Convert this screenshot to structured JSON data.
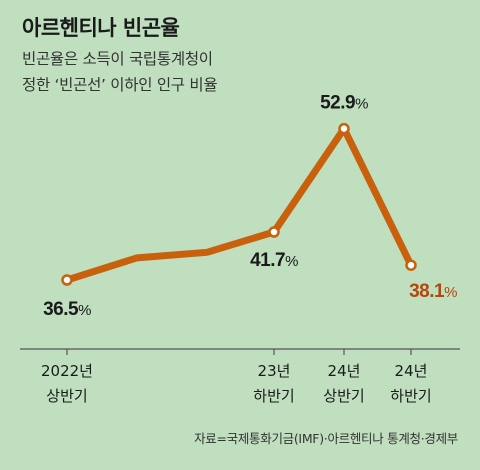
{
  "title": "아르헨티나 빈곤율",
  "subtitle_lines": [
    "빈곤율은 소득이 국립통계청이",
    "정한 ‘빈곤선’ 이하인 인구 비율"
  ],
  "source": "자료=국제통화기금(IMF)·아르헨티나 통계청·경제부",
  "colors": {
    "line": "#c8600c",
    "highlight": "#b8450a",
    "text": "#1a1a1a",
    "background": "#bfdfbf",
    "axis": "#555555"
  },
  "chart_data": {
    "type": "line",
    "x": [
      0,
      1,
      2,
      3,
      4,
      5
    ],
    "values": [
      36.5,
      38.9,
      39.5,
      41.7,
      52.9,
      38.1
    ],
    "ylim": [
      30,
      56
    ],
    "point_labels": [
      {
        "index": 0,
        "number": "36.5",
        "unit": "%"
      },
      {
        "index": 3,
        "number": "41.7",
        "unit": "%"
      },
      {
        "index": 4,
        "number": "52.9",
        "unit": "%"
      },
      {
        "index": 5,
        "number": "38.1",
        "unit": "%"
      }
    ],
    "x_labels": [
      {
        "index": 0,
        "line1": "2022년",
        "line2": "상반기"
      },
      {
        "index": 3,
        "line1": "23년",
        "line2": "하반기"
      },
      {
        "index": 4,
        "line1": "24년",
        "line2": "상반기"
      },
      {
        "index": 5,
        "line1": "24년",
        "line2": "하반기"
      }
    ],
    "markers": [
      0,
      3,
      4,
      5
    ],
    "highlight_index": 5,
    "xlabel": "",
    "ylabel": "",
    "grid": false,
    "legend": "none"
  }
}
